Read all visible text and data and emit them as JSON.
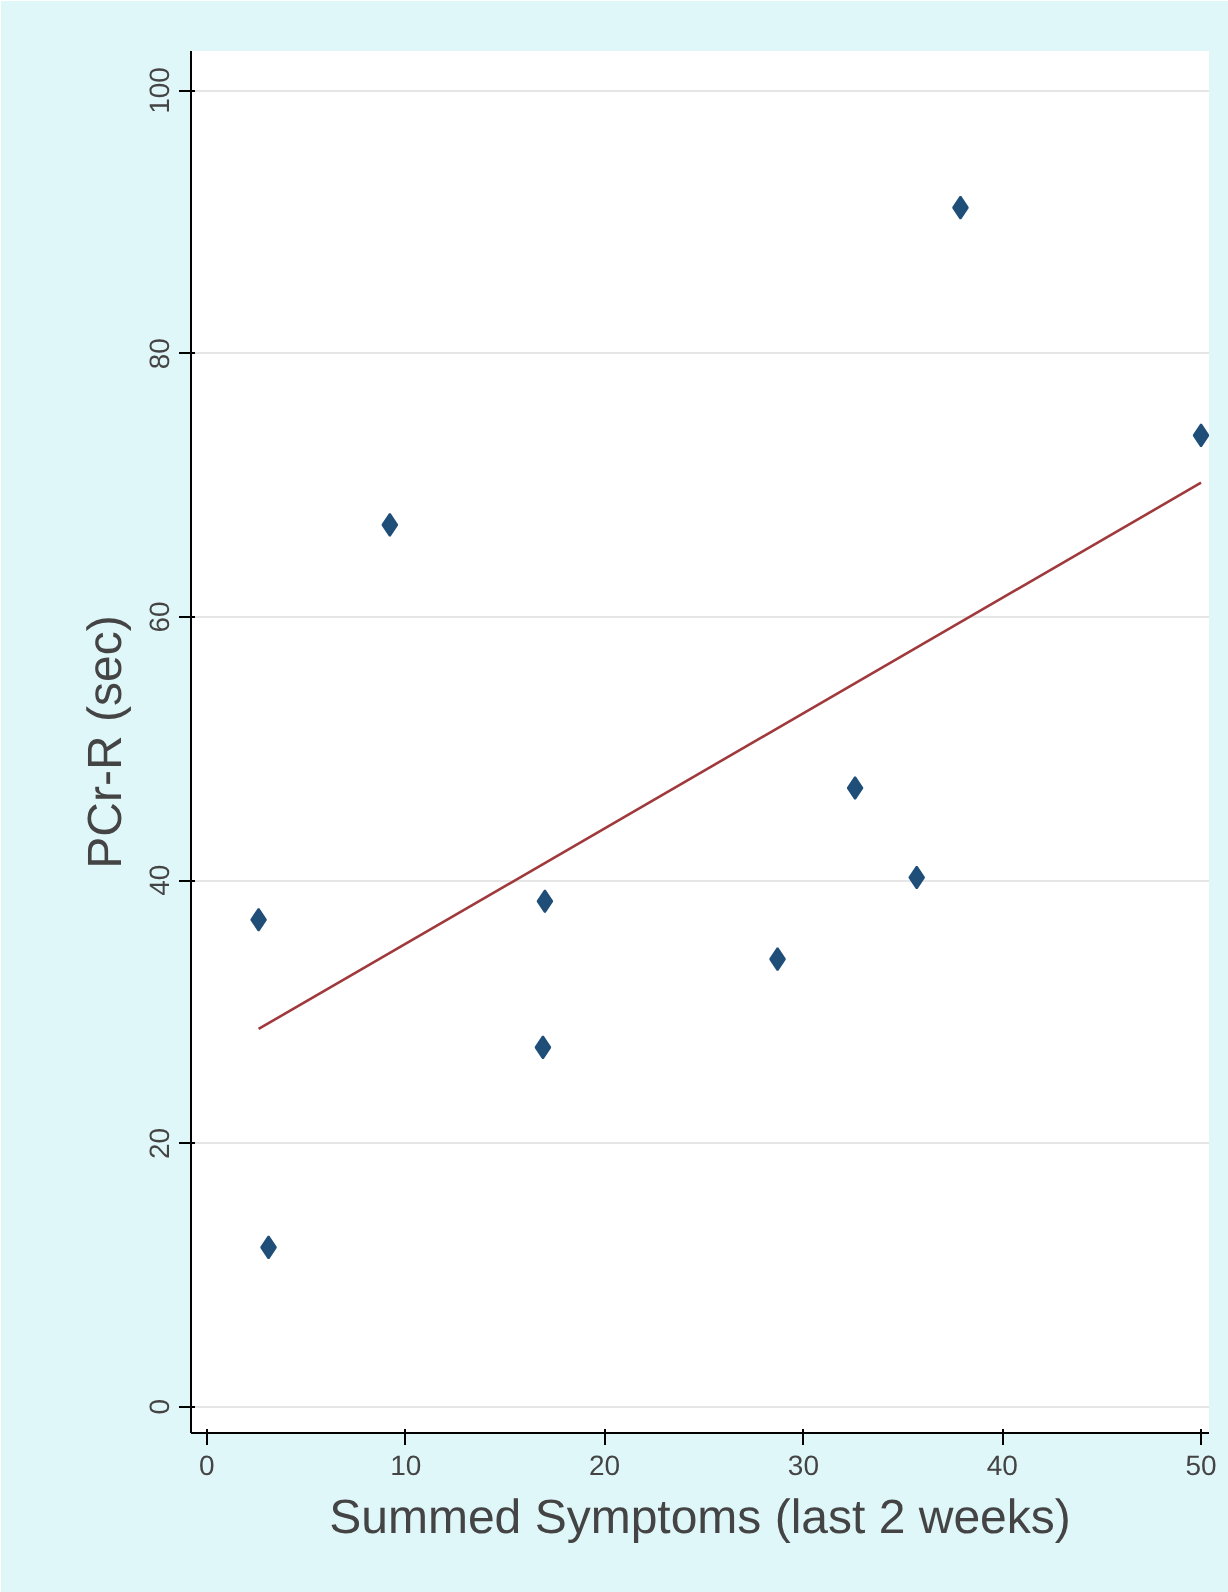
{
  "chart_data": {
    "type": "scatter",
    "xlabel": "Summed Symptoms (last 2 weeks)",
    "ylabel": "PCr-R (sec)",
    "xlim": [
      -0.8,
      50.4
    ],
    "ylim": [
      -2,
      103
    ],
    "xticks": [
      0,
      10,
      20,
      30,
      40,
      50
    ],
    "yticks": [
      0,
      20,
      40,
      60,
      80,
      100
    ],
    "grid": "y",
    "series": [
      {
        "marker": "diamond",
        "color": "#1f4e79",
        "x": [
          2.6,
          3.1,
          9.2,
          17.0,
          16.9,
          28.7,
          32.6,
          35.7,
          37.9,
          50.0
        ],
        "values": [
          37.0,
          12.1,
          67.0,
          38.4,
          27.3,
          34.0,
          47.0,
          40.2,
          91.1,
          73.8
        ]
      },
      {
        "type": "line",
        "color": "#a0393c",
        "x": [
          2.6,
          50.0
        ],
        "values": [
          28.7,
          70.2
        ]
      }
    ]
  }
}
